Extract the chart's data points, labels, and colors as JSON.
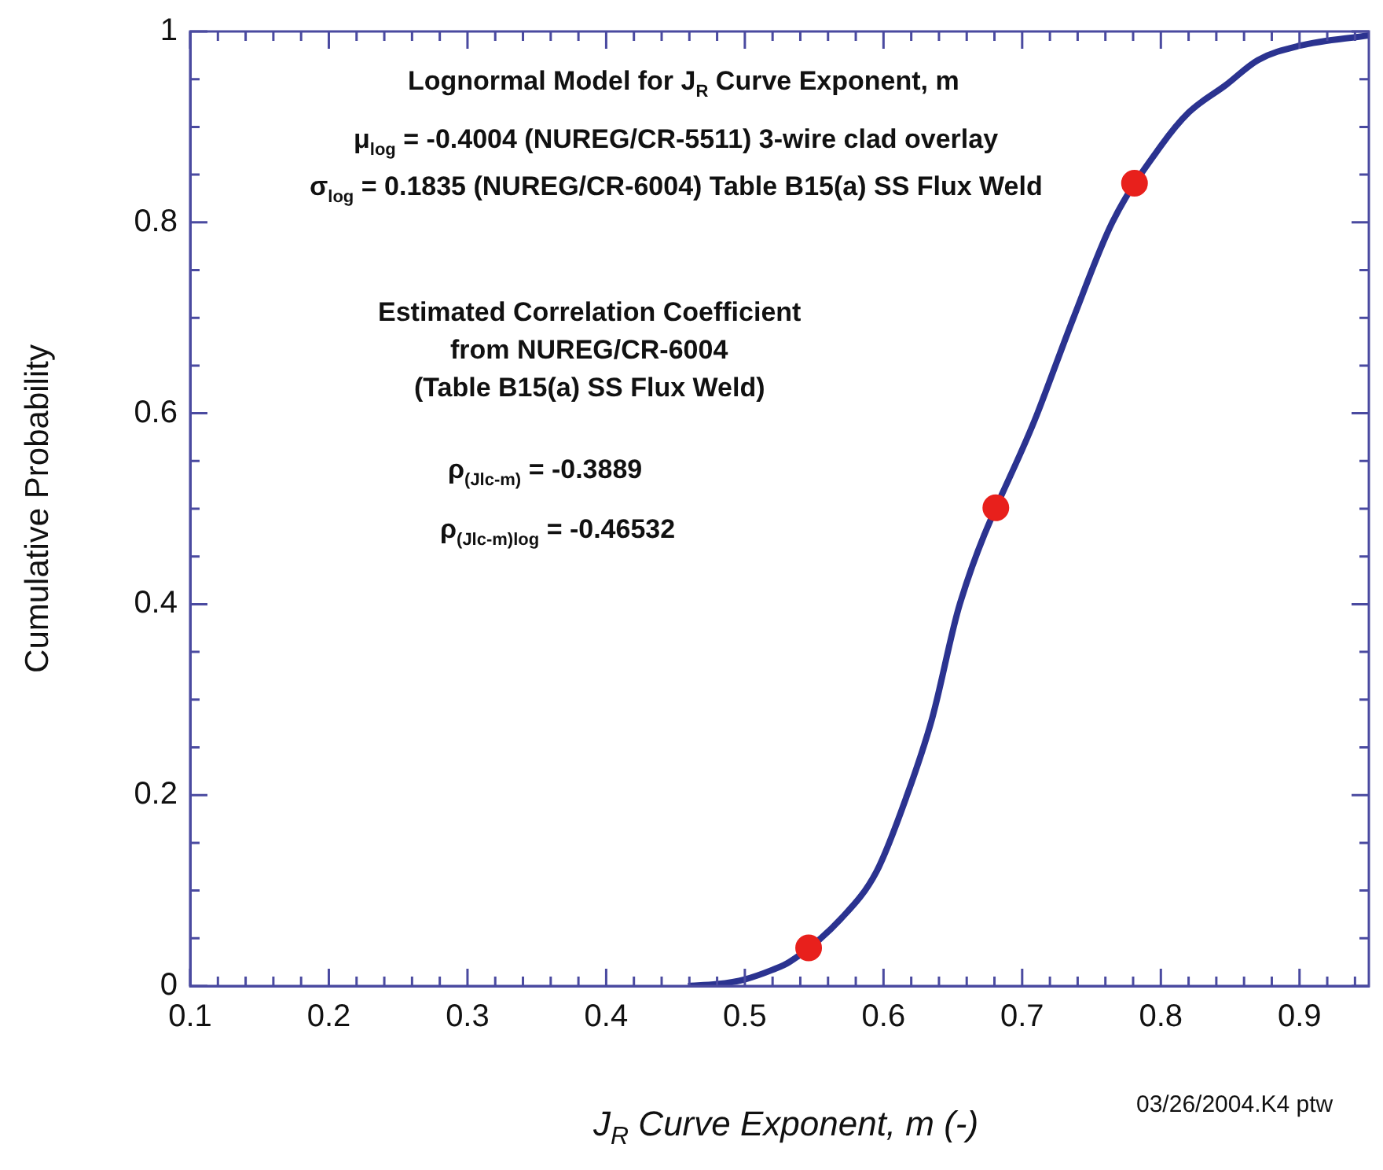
{
  "chart_data": {
    "type": "line",
    "ylabel": "Cumulative Probability",
    "xlabel": "J$_{R}$ Curve Exponent, m (-)",
    "annotations": [
      "Lognormal Model for J$_{R}$ Curve Exponent, m",
      "μ$_{log}$ = -0.4004 (NUREG/CR-5511) 3-wire clad overlay",
      "σ$_{log}$ = 0.1835 (NUREG/CR-6004) Table B15(a) SS Flux Weld",
      "Estimated Correlation Coefficient",
      "from NUREG/CR-6004",
      "(Table B15(a) SS Flux Weld)",
      "ρ$_{(Jlc-m)}$ = -0.3889",
      "ρ$_{(Jlc-m)log}$ = -0.46532",
      "03/26/2004.K4 ptw"
    ],
    "xlim": [
      0.1,
      0.95
    ],
    "xticks": [
      0.1,
      {
        "value": 0.12,
        "label": null
      },
      {
        "value": 0.14,
        "label": null
      },
      {
        "value": 0.16,
        "label": null
      },
      {
        "value": 0.18,
        "label": null
      },
      0.2,
      {
        "value": 0.22,
        "label": null
      },
      {
        "value": 0.24,
        "label": null
      },
      {
        "value": 0.26,
        "label": null
      },
      {
        "value": 0.28,
        "label": null
      },
      0.3,
      {
        "value": 0.32,
        "label": null
      },
      {
        "value": 0.34,
        "label": null
      },
      {
        "value": 0.36,
        "label": null
      },
      {
        "value": 0.38,
        "label": null
      },
      0.4,
      {
        "value": 0.42,
        "label": null
      },
      {
        "value": 0.44,
        "label": null
      },
      {
        "value": 0.46,
        "label": null
      },
      {
        "value": 0.48,
        "label": null
      },
      0.5,
      {
        "value": 0.52,
        "label": null
      },
      {
        "value": 0.54,
        "label": null
      },
      {
        "value": 0.56,
        "label": null
      },
      {
        "value": 0.58,
        "label": null
      },
      0.6,
      {
        "value": 0.62,
        "label": null
      },
      {
        "value": 0.64,
        "label": null
      },
      {
        "value": 0.66,
        "label": null
      },
      {
        "value": 0.68,
        "label": null
      },
      0.7,
      {
        "value": 0.72,
        "label": null
      },
      {
        "value": 0.74,
        "label": null
      },
      {
        "value": 0.76,
        "label": null
      },
      {
        "value": 0.78,
        "label": null
      },
      0.8,
      {
        "value": 0.82,
        "label": null
      },
      {
        "value": 0.84,
        "label": null
      },
      {
        "value": 0.86,
        "label": null
      },
      {
        "value": 0.88,
        "label": null
      },
      0.9,
      {
        "value": 0.92,
        "label": null
      },
      {
        "value": 0.94,
        "label": null
      }
    ],
    "ylim": [
      0,
      1
    ],
    "yticks": [
      0,
      {
        "value": 0.05,
        "label": null
      },
      {
        "value": 0.1,
        "label": null
      },
      {
        "value": 0.15,
        "label": null
      },
      0.2,
      {
        "value": 0.25,
        "label": null
      },
      {
        "value": 0.3,
        "label": null
      },
      {
        "value": 0.35,
        "label": null
      },
      0.4,
      {
        "value": 0.45,
        "label": null
      },
      {
        "value": 0.5,
        "label": null
      },
      {
        "value": 0.55,
        "label": null
      },
      0.6,
      {
        "value": 0.65,
        "label": null
      },
      {
        "value": 0.7,
        "label": null
      },
      {
        "value": 0.75,
        "label": null
      },
      0.8,
      {
        "value": 0.85,
        "label": null
      },
      {
        "value": 0.9,
        "label": null
      },
      {
        "value": 0.95,
        "label": null
      },
      1
    ],
    "grid": false,
    "legend": false,
    "series": [
      {
        "color": "#2b3390",
        "marker": "none",
        "x": [
          0.459,
          0.48,
          0.5,
          0.52,
          0.532,
          0.569,
          0.595,
          0.617,
          0.635,
          0.655,
          0.711,
          0.737,
          0.765,
          0.8,
          0.82,
          0.847,
          0.87,
          0.9,
          0.95
        ],
        "values": [
          0,
          0.002,
          0.007,
          0.017,
          0.025,
          0.07,
          0.12,
          0.2,
          0.28,
          0.4,
          0.6,
          0.7,
          0.8,
          0.88,
          0.915,
          0.944,
          0.97,
          0.985,
          0.996
        ]
      },
      {
        "type": "scatter",
        "color": "#e8201c",
        "marker": "circle",
        "x": [
          0.546,
          0.681,
          0.781
        ],
        "values": [
          0.04,
          0.501,
          0.841
        ]
      }
    ]
  }
}
